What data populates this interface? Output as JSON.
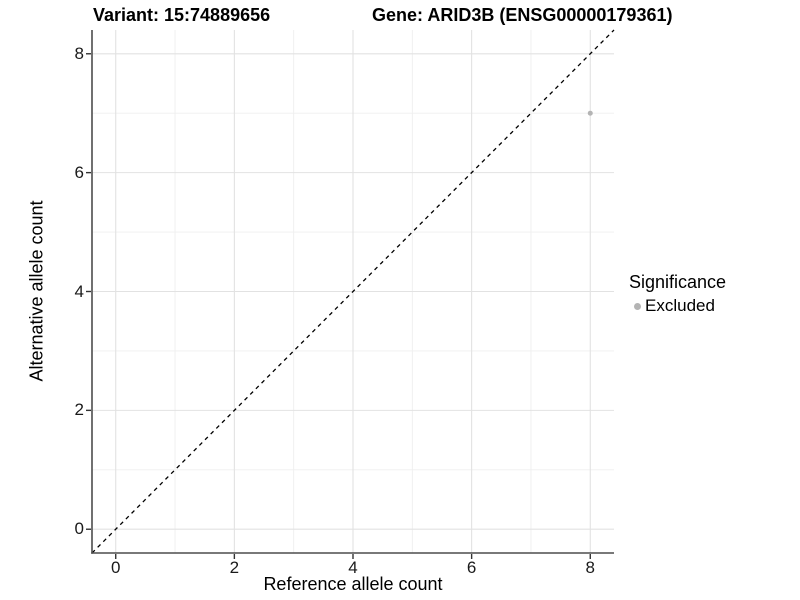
{
  "title": {
    "variant": "Variant: 15:74889656",
    "gene": "Gene: ARID3B (ENSG00000179361)"
  },
  "chart_data": {
    "type": "scatter",
    "title_left": "Variant: 15:74889656",
    "title_right": "Gene: ARID3B (ENSG00000179361)",
    "xlabel": "Reference allele count",
    "ylabel": "Alternative allele count",
    "xlim": [
      -0.4,
      8.4
    ],
    "ylim": [
      -0.4,
      8.4
    ],
    "x_ticks": [
      0,
      2,
      4,
      6,
      8
    ],
    "y_ticks": [
      0,
      2,
      4,
      6,
      8
    ],
    "x_minor_ticks": [
      1,
      3,
      5,
      7
    ],
    "y_minor_ticks": [
      1,
      3,
      5,
      7
    ],
    "grid": "major+minor",
    "identity_line": {
      "slope": 1,
      "intercept": 0,
      "style": "dashed",
      "color": "#000000"
    },
    "points": [
      {
        "x": 8,
        "y": 7,
        "series": "Excluded"
      }
    ],
    "legend": {
      "title": "Significance",
      "position": "right",
      "items": [
        {
          "label": "Excluded",
          "marker": "circle",
          "color": "#b4b4b4"
        }
      ]
    },
    "colors": {
      "point": "#b4b4b4",
      "grid_major": "#e2e2e2",
      "grid_minor": "#efefef",
      "axis_line": "#4d4d4d",
      "tick_mark": "#333333",
      "identity_line": "#000000",
      "background": "#ffffff"
    }
  }
}
